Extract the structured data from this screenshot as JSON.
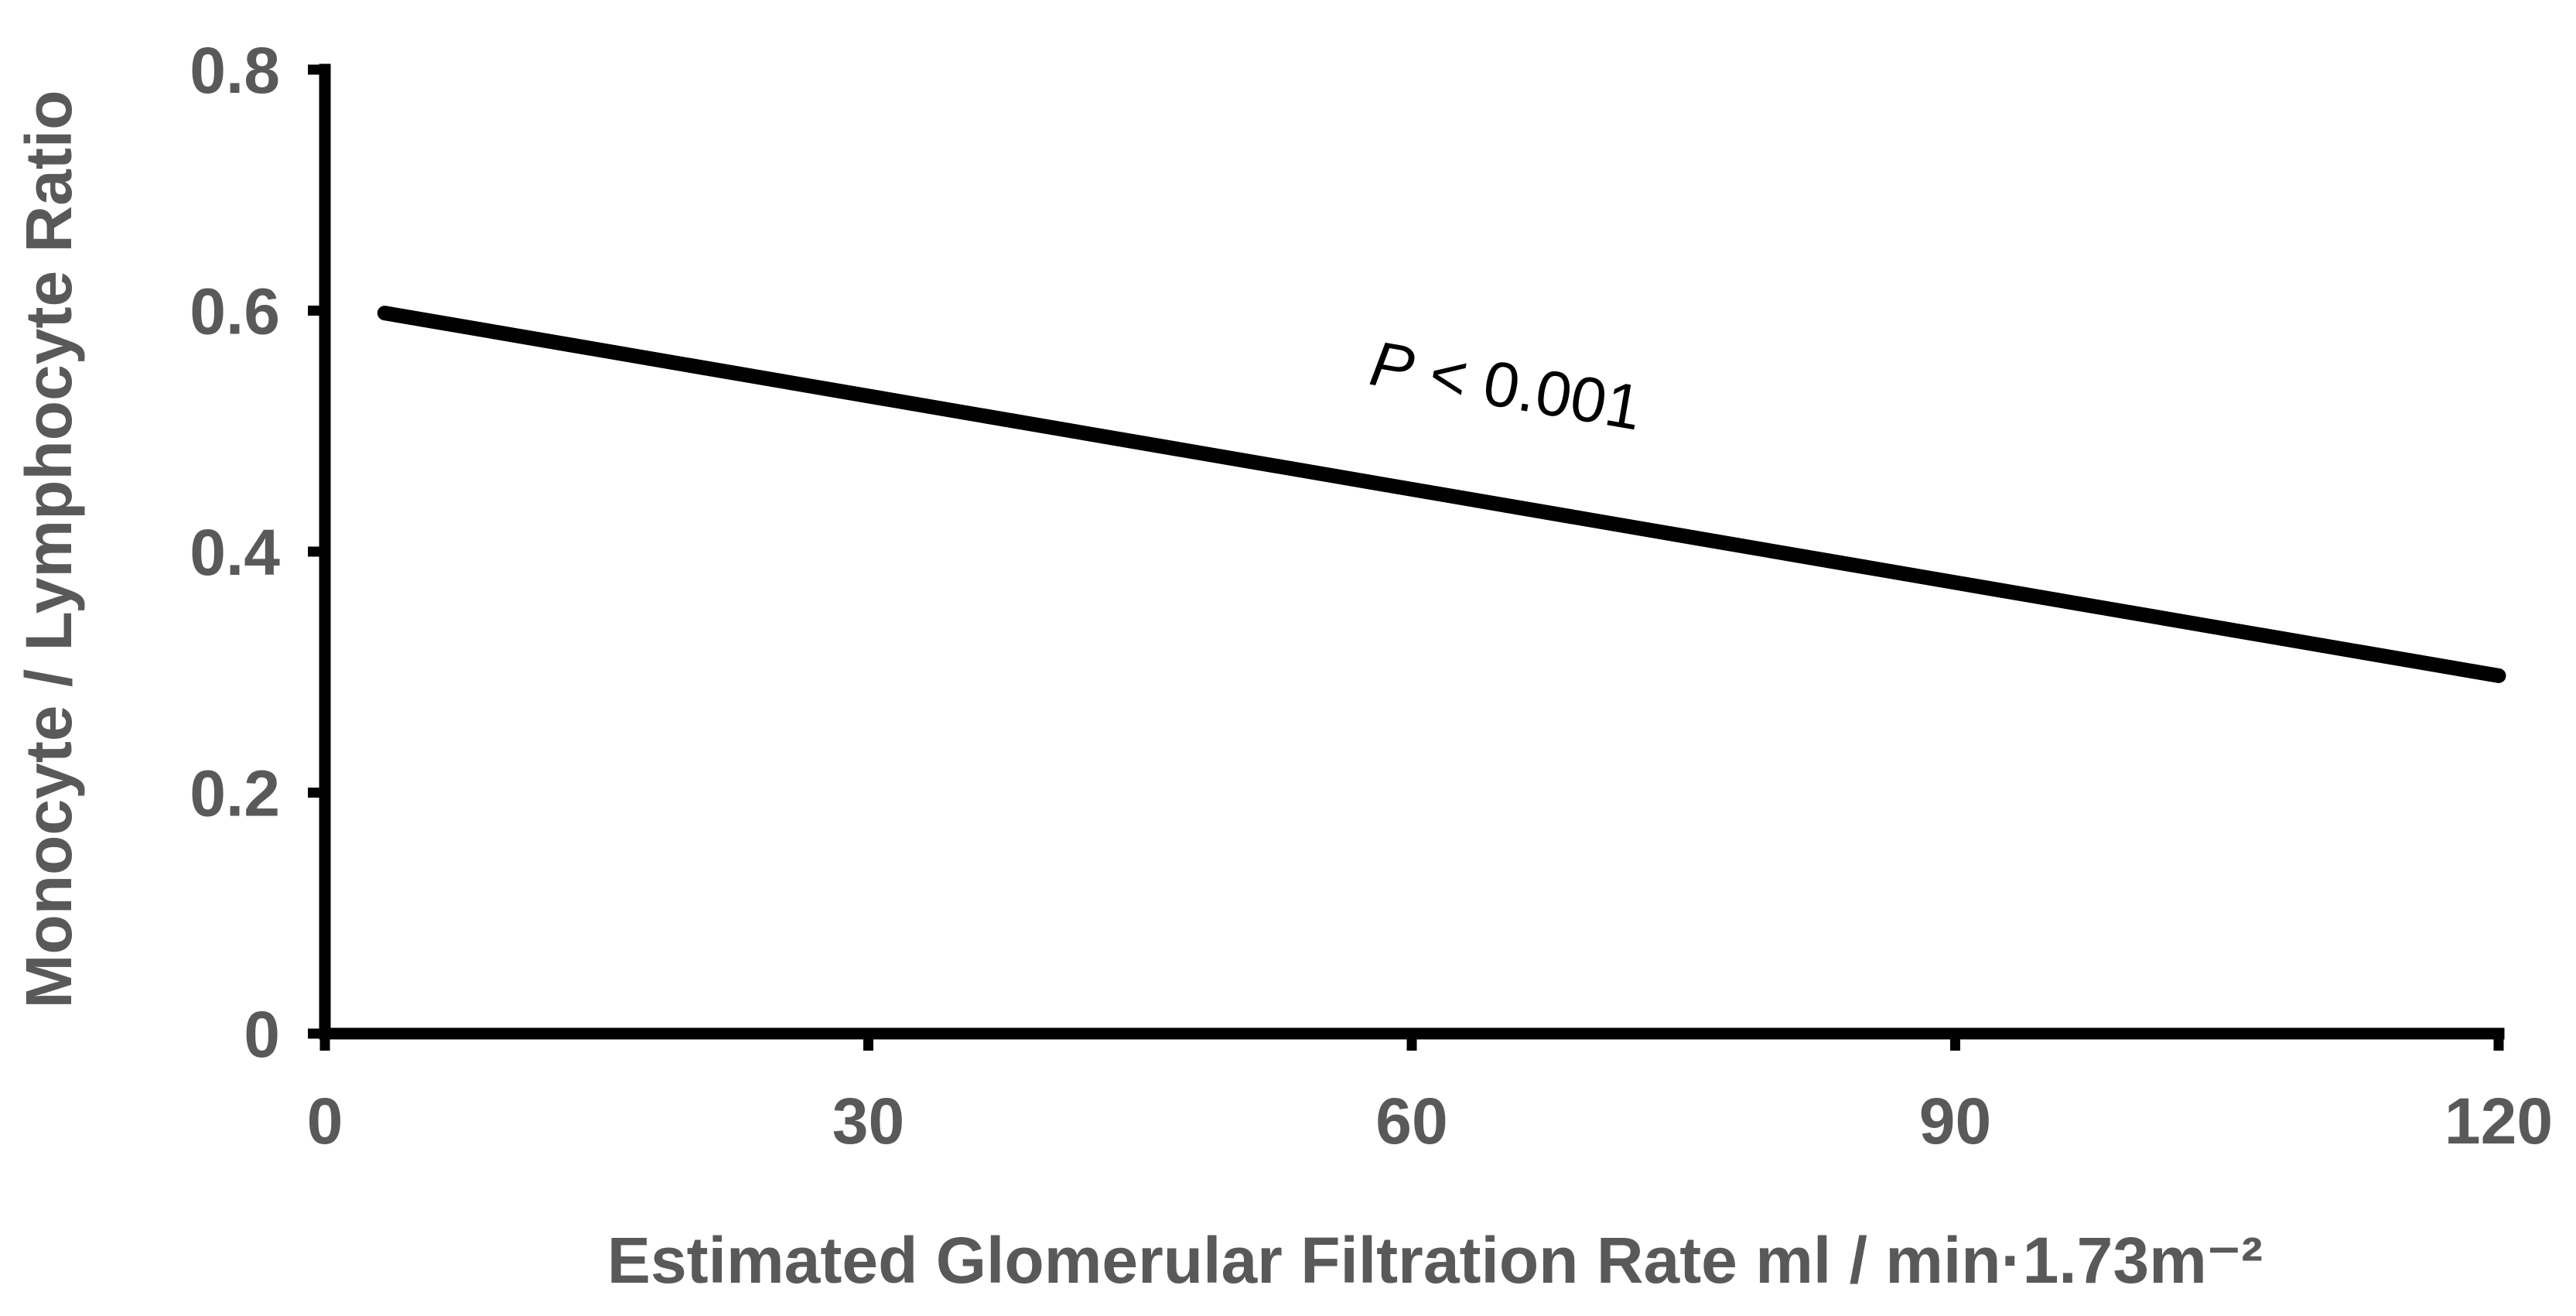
{
  "chart_data": {
    "type": "line",
    "title": "",
    "xlabel": "Estimated Glomerular Filtration Rate ml / min·1.73m⁻²",
    "ylabel": "Monocyte / Lymphocyte Ratio",
    "xlim": [
      0,
      120
    ],
    "ylim": [
      0,
      0.8
    ],
    "x_ticks": [
      0,
      30,
      60,
      90,
      120
    ],
    "x_tick_labels": [
      "0",
      "30",
      "60",
      "90",
      "120"
    ],
    "y_ticks": [
      0,
      0.2,
      0.4,
      0.6,
      0.8
    ],
    "y_tick_labels": [
      "0",
      "0.2",
      "0.4",
      "0.6",
      "0.8"
    ],
    "series": [
      {
        "x": [
          3.3,
          120
        ],
        "y": [
          0.598,
          0.297
        ]
      }
    ],
    "annotation": {
      "p_symbol": "P",
      "p_text": " < 0.001",
      "x": 65,
      "y": 0.52
    },
    "grid": false,
    "legend": "none",
    "colors": {
      "line": "#000000",
      "axes": "#000000",
      "labels": "#595959"
    }
  }
}
